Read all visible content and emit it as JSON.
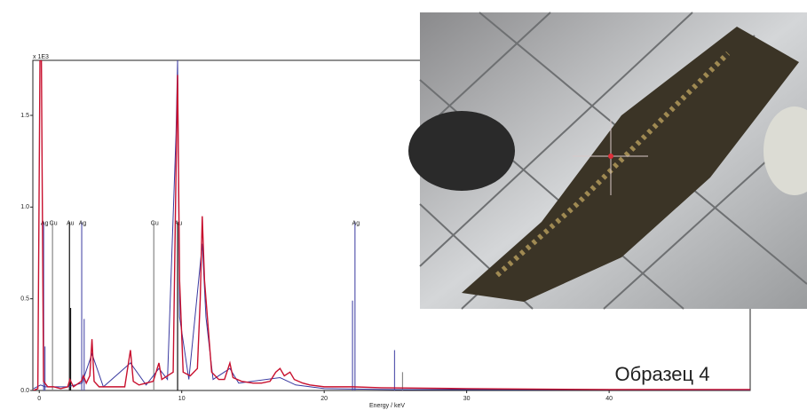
{
  "chart_data": {
    "type": "line",
    "y_label": "x 1E3",
    "x_label": "Energy / keV",
    "annotation": "Образец 4",
    "xlim": [
      -0.45,
      49.9
    ],
    "ylim": [
      0,
      1.8
    ],
    "xticks": [
      0,
      10,
      20,
      30,
      40
    ],
    "yticks": [
      {
        "value": 0,
        "label": "0.0"
      },
      {
        "value": 0.5,
        "label": "0.5"
      },
      {
        "value": 1,
        "label": "1.0"
      },
      {
        "value": 1.5,
        "label": "1.5"
      }
    ],
    "series": [
      {
        "color": "#c8102e",
        "x": [
          -0.4,
          -0.1,
          0.05,
          0.15,
          0.3,
          0.6,
          1.0,
          1.5,
          2.0,
          2.15,
          2.4,
          2.95,
          3.1,
          3.3,
          3.55,
          3.7,
          3.85,
          4.2,
          5.0,
          6.0,
          6.4,
          6.6,
          7.0,
          7.5,
          8.0,
          8.4,
          8.6,
          9.0,
          9.4,
          9.6,
          9.71,
          9.85,
          10.1,
          10.6,
          11.1,
          11.3,
          11.44,
          11.6,
          11.9,
          12.1,
          12.6,
          13.0,
          13.38,
          13.6,
          14.2,
          15.0,
          15.6,
          16.2,
          16.6,
          16.9,
          17.2,
          17.6,
          17.9,
          18.5,
          19.0,
          20.0,
          21.0,
          22.0,
          24.0,
          30.0,
          40.0,
          49.9
        ],
        "values": [
          0.0,
          0.01,
          1.8,
          1.8,
          0.05,
          0.02,
          0.02,
          0.01,
          0.02,
          0.06,
          0.02,
          0.05,
          0.08,
          0.04,
          0.08,
          0.28,
          0.05,
          0.02,
          0.02,
          0.02,
          0.22,
          0.05,
          0.03,
          0.04,
          0.05,
          0.15,
          0.06,
          0.08,
          0.1,
          1.2,
          1.72,
          0.6,
          0.1,
          0.08,
          0.12,
          0.5,
          0.95,
          0.6,
          0.3,
          0.1,
          0.06,
          0.06,
          0.15,
          0.07,
          0.05,
          0.04,
          0.04,
          0.05,
          0.1,
          0.12,
          0.08,
          0.1,
          0.06,
          0.04,
          0.03,
          0.02,
          0.02,
          0.02,
          0.015,
          0.01,
          0.005,
          0.005
        ]
      },
      {
        "color": "#3a3aa0",
        "x": [
          -0.4,
          0.1,
          0.4,
          1.0,
          2.0,
          3.0,
          3.7,
          4.5,
          6.4,
          7.5,
          8.4,
          9.0,
          9.6,
          9.71,
          9.85,
          10.5,
          11.44,
          11.7,
          12.2,
          13.38,
          14.0,
          16.9,
          18.0,
          20.0,
          25.0,
          49.9
        ],
        "values": [
          0.01,
          0.03,
          0.02,
          0.02,
          0.02,
          0.04,
          0.2,
          0.02,
          0.15,
          0.03,
          0.12,
          0.06,
          1.4,
          1.8,
          0.4,
          0.06,
          0.8,
          0.4,
          0.06,
          0.12,
          0.04,
          0.07,
          0.03,
          0.01,
          0.005,
          0.003
        ]
      }
    ],
    "markers": [
      {
        "label": "Ag",
        "energy": 0.31,
        "height": 0.92,
        "color": "#5a5ab0"
      },
      {
        "label": "Cu",
        "energy": 0.93,
        "height": 0.92,
        "color": "#888888"
      },
      {
        "label": "Au",
        "energy": 2.12,
        "height": 0.92,
        "color": "#111111"
      },
      {
        "label": "Ag",
        "energy": 2.98,
        "height": 0.92,
        "color": "#5a5ab0"
      },
      {
        "label": "Cu",
        "energy": 8.04,
        "height": 0.92,
        "color": "#888888"
      },
      {
        "label": "Au",
        "energy": 9.71,
        "height": 0.92,
        "color": "#111111"
      },
      {
        "label": "Ag",
        "energy": 22.16,
        "height": 0.92,
        "color": "#5a5ab0"
      },
      {
        "label": null,
        "energy": 0.4,
        "height": 0.24,
        "color": "#5a5ab0"
      },
      {
        "label": null,
        "energy": 2.2,
        "height": 0.45,
        "color": "#111111"
      },
      {
        "label": null,
        "energy": 3.15,
        "height": 0.39,
        "color": "#5a5ab0"
      },
      {
        "label": null,
        "energy": 21.99,
        "height": 0.49,
        "color": "#5a5ab0"
      },
      {
        "label": null,
        "energy": 24.94,
        "height": 0.22,
        "color": "#5a5ab0"
      },
      {
        "label": null,
        "energy": 25.5,
        "height": 0.1,
        "color": "#888888"
      }
    ]
  }
}
